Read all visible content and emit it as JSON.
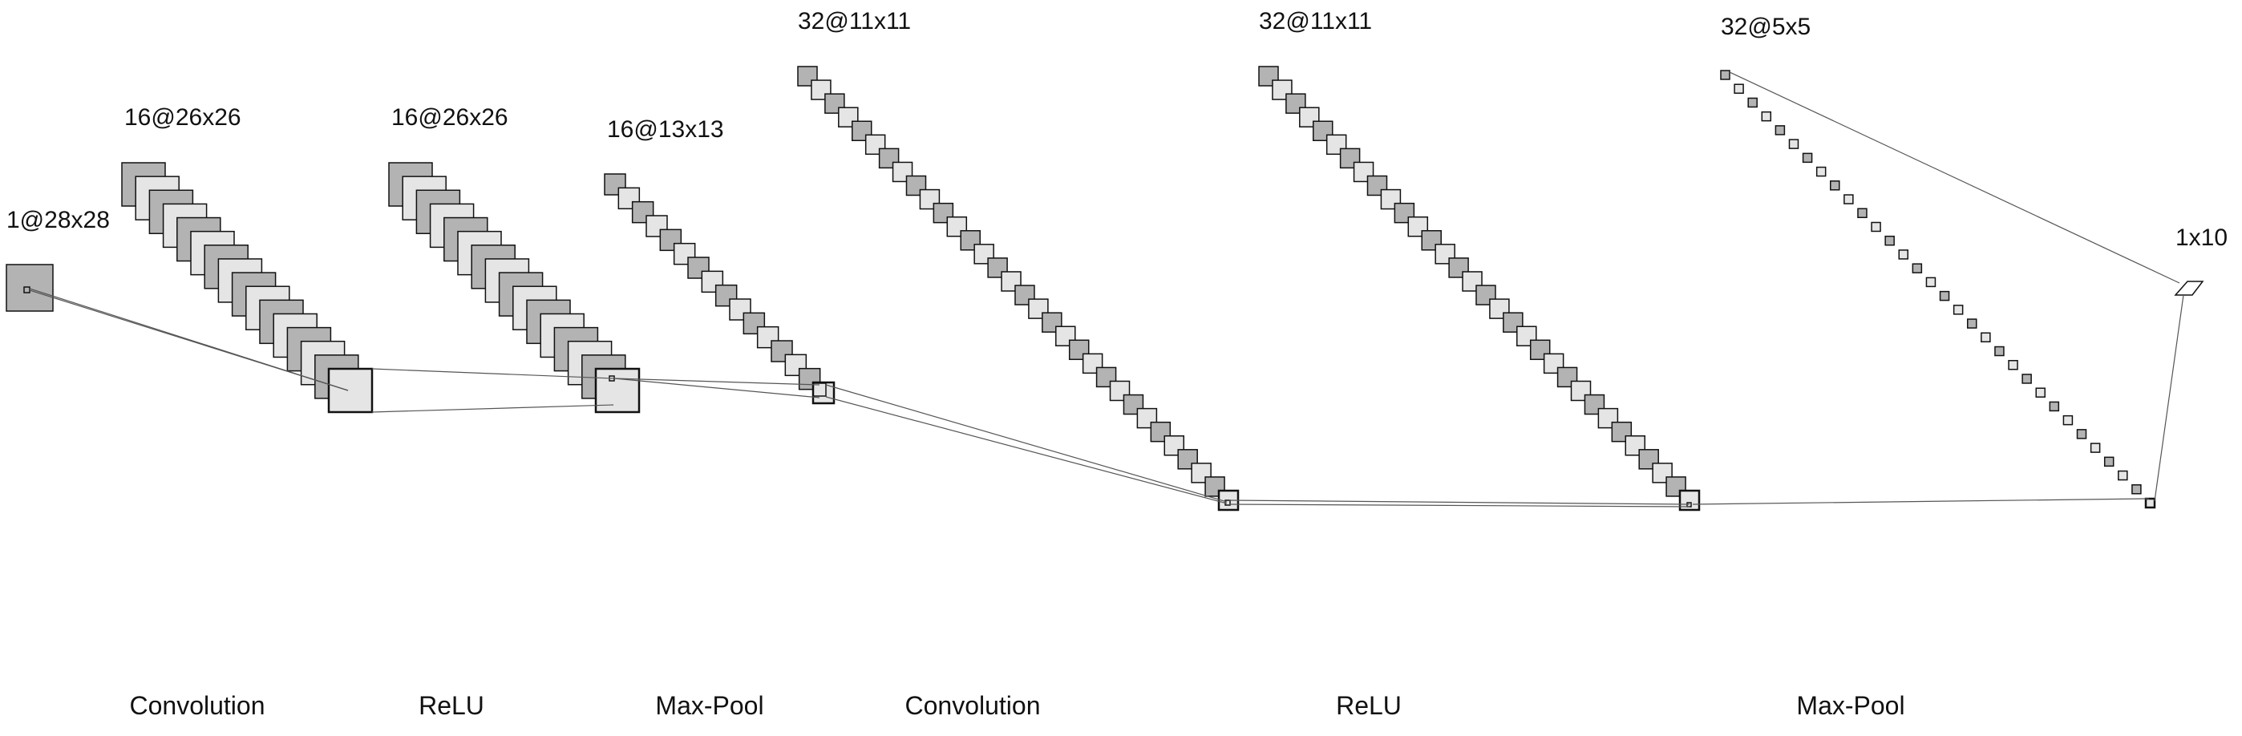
{
  "diagram": {
    "layers": [
      {
        "dims": "1@28x28",
        "count": 1
      },
      {
        "dims": "16@26x26",
        "count": 16
      },
      {
        "dims": "16@26x26",
        "count": 16
      },
      {
        "dims": "16@13x13",
        "count": 16
      },
      {
        "dims": "32@11x11",
        "count": 32
      },
      {
        "dims": "32@11x11",
        "count": 32
      },
      {
        "dims": "32@5x5",
        "count": 32
      },
      {
        "dims": "1x10",
        "count": 1
      }
    ],
    "operations": [
      {
        "label": "Convolution"
      },
      {
        "label": "ReLU"
      },
      {
        "label": "Max-Pool"
      },
      {
        "label": "Convolution"
      },
      {
        "label": "ReLU"
      },
      {
        "label": "Max-Pool"
      }
    ],
    "colors": {
      "dark_fill": "#b3b3b3",
      "light_fill": "#e5e5e5",
      "stroke": "#111111",
      "connector": "#555555",
      "background": "#ffffff"
    }
  }
}
